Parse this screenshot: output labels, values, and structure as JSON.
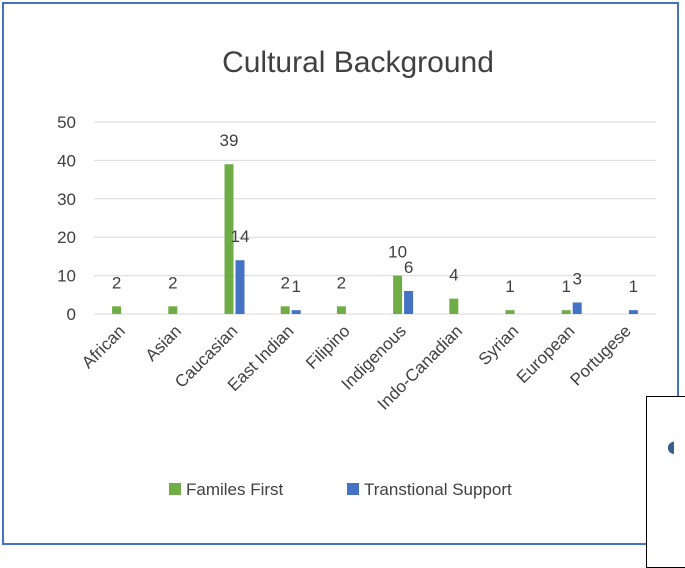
{
  "chart_data": {
    "type": "bar",
    "title": "Cultural Background",
    "xlabel": "",
    "ylabel": "",
    "ylim": [
      0,
      50
    ],
    "yticks": [
      0,
      10,
      20,
      30,
      40,
      50
    ],
    "grid": true,
    "legend_position": "bottom",
    "categories": [
      "African",
      "Asian",
      "Caucasian",
      "East Indian",
      "Filipino",
      "Indigenous",
      "Indo-Canadian",
      "Syrian",
      "European",
      "Portugese"
    ],
    "series": [
      {
        "name": "Familes First",
        "color": "#70ad47",
        "values": [
          2,
          2,
          39,
          2,
          2,
          10,
          4,
          1,
          1,
          0
        ],
        "labels": [
          "2",
          "2",
          "39",
          "2",
          "2",
          "10",
          "4",
          "1",
          "1",
          ""
        ]
      },
      {
        "name": "Transtional Support",
        "color": "#4472c4",
        "values": [
          0,
          0,
          14,
          1,
          0,
          6,
          0,
          0,
          3,
          1
        ],
        "labels": [
          "",
          "",
          "14",
          "1",
          "",
          "6",
          "",
          "",
          "3",
          "1"
        ]
      }
    ]
  },
  "overlay": {
    "icon": "partial-app-icon"
  }
}
